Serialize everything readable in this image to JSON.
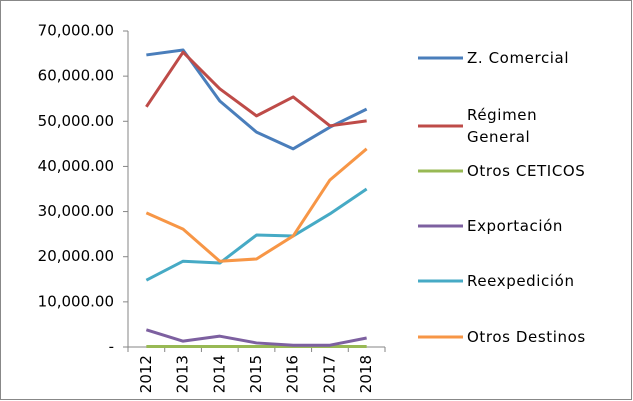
{
  "chart_data": {
    "type": "line",
    "categories": [
      "2012",
      "2013",
      "2014",
      "2015",
      "2016",
      "2017",
      "2018"
    ],
    "series": [
      {
        "name": "Z. Comercial",
        "color": "#4a7ebb",
        "values": [
          64700,
          65800,
          54500,
          47600,
          43900,
          48700,
          52700
        ]
      },
      {
        "name": "Régimen General",
        "color": "#be4b48",
        "values": [
          53200,
          65300,
          57200,
          51200,
          55400,
          49000,
          50100
        ]
      },
      {
        "name": "Otros CETICOS",
        "color": "#98b954",
        "values": [
          100,
          100,
          100,
          100,
          100,
          100,
          100
        ]
      },
      {
        "name": "Exportación",
        "color": "#7d60a0",
        "values": [
          3800,
          1300,
          2400,
          900,
          400,
          400,
          2000
        ]
      },
      {
        "name": "Reexpedición",
        "color": "#46aac5",
        "values": [
          14800,
          19000,
          18600,
          24800,
          24600,
          29500,
          35000
        ]
      },
      {
        "name": "Otros Destinos",
        "color": "#f79646",
        "values": [
          29700,
          26100,
          19000,
          19500,
          24600,
          37000,
          43900
        ]
      }
    ],
    "ylim": [
      0,
      70000
    ],
    "yticks": [
      {
        "value": 0,
        "label": "-"
      },
      {
        "value": 10000,
        "label": "10,000.00"
      },
      {
        "value": 20000,
        "label": "20,000.00"
      },
      {
        "value": 30000,
        "label": "30,000.00"
      },
      {
        "value": 40000,
        "label": "40,000.00"
      },
      {
        "value": 50000,
        "label": "50,000.00"
      },
      {
        "value": 60000,
        "label": "60,000.00"
      },
      {
        "value": 70000,
        "label": "70,000.00"
      }
    ],
    "legend": "right"
  }
}
